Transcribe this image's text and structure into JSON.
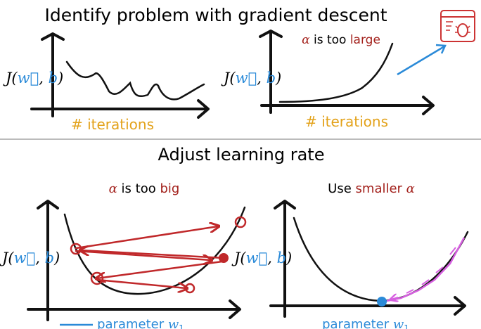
{
  "header": {
    "title": "Identify problem with gradient descent"
  },
  "top_panels": [
    {
      "y_label": {
        "func": "J(",
        "w": "w⃗",
        "sep": ", ",
        "b": "b",
        "close": ")"
      },
      "x_label": "# iterations"
    },
    {
      "annotation": {
        "symbol": "α",
        "prefix": " is too ",
        "emphasis": "large"
      },
      "y_label": {
        "func": "J(",
        "w": "w⃗",
        "sep": ", ",
        "b": "b",
        "close": ")"
      },
      "x_label": "# iterations"
    }
  ],
  "section": {
    "title": "Adjust learning rate"
  },
  "bottom_panels": [
    {
      "caption": {
        "symbol": "α",
        "prefix": " is too ",
        "emphasis": "big"
      },
      "y_label": {
        "func": "J(",
        "w": "w⃗",
        "sep": ", ",
        "b": "b",
        "close": ")"
      },
      "x_label": {
        "text": "parameter ",
        "var": "w",
        "sub": "1"
      }
    },
    {
      "caption": {
        "prefix": "Use ",
        "emphasis": "smaller ",
        "symbol": "α"
      },
      "y_label": {
        "func": "J(",
        "w": "w⃗",
        "sep": ", ",
        "b": "b",
        "close": ")"
      },
      "x_label": {
        "text": "parameter ",
        "var": "w",
        "sub": "1"
      }
    }
  ]
}
